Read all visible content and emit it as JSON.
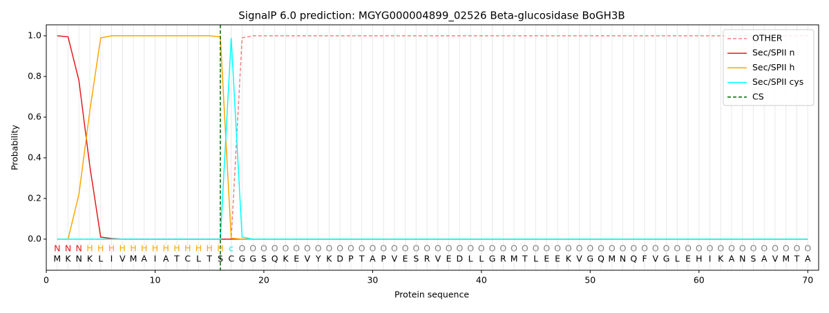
{
  "chart_data": {
    "type": "line",
    "title": "SignalP 6.0 prediction: MGYG000004899_02526 Beta-glucosidase BoGH3B",
    "xlabel": "Protein sequence",
    "ylabel": "Probability",
    "x": [
      1,
      2,
      3,
      4,
      5,
      6,
      7,
      8,
      9,
      10,
      11,
      12,
      13,
      14,
      15,
      16,
      17,
      18,
      19,
      20,
      21,
      22,
      23,
      24,
      25,
      26,
      27,
      28,
      29,
      30,
      31,
      32,
      33,
      34,
      35,
      36,
      37,
      38,
      39,
      40,
      41,
      42,
      43,
      44,
      45,
      46,
      47,
      48,
      49,
      50,
      51,
      52,
      53,
      54,
      55,
      56,
      57,
      58,
      59,
      60,
      61,
      62,
      63,
      64,
      65,
      66,
      67,
      68,
      69,
      70
    ],
    "residues": [
      "M",
      "K",
      "N",
      "K",
      "L",
      "I",
      "V",
      "M",
      "A",
      "I",
      "A",
      "T",
      "C",
      "L",
      "T",
      "S",
      "C",
      "G",
      "G",
      "S",
      "Q",
      "K",
      "E",
      "V",
      "Y",
      "K",
      "D",
      "P",
      "T",
      "A",
      "P",
      "V",
      "E",
      "S",
      "R",
      "V",
      "E",
      "D",
      "L",
      "L",
      "G",
      "R",
      "M",
      "T",
      "L",
      "E",
      "E",
      "K",
      "V",
      "G",
      "Q",
      "M",
      "N",
      "Q",
      "F",
      "V",
      "G",
      "L",
      "E",
      "H",
      "I",
      "K",
      "A",
      "N",
      "S",
      "A",
      "V",
      "M",
      "T",
      "A"
    ],
    "labels": [
      "N",
      "N",
      "N",
      "H",
      "H",
      "H",
      "H",
      "H",
      "H",
      "H",
      "H",
      "H",
      "H",
      "H",
      "H",
      "H",
      "c",
      "O",
      "O",
      "O",
      "O",
      "O",
      "O",
      "O",
      "O",
      "O",
      "O",
      "O",
      "O",
      "O",
      "O",
      "O",
      "O",
      "O",
      "O",
      "O",
      "O",
      "O",
      "O",
      "O",
      "O",
      "O",
      "O",
      "O",
      "O",
      "O",
      "O",
      "O",
      "O",
      "O",
      "O",
      "O",
      "O",
      "O",
      "O",
      "O",
      "O",
      "O",
      "O",
      "O",
      "O",
      "O",
      "O",
      "O",
      "O",
      "O",
      "O",
      "O",
      "O",
      "O"
    ],
    "label_colors": {
      "N": "#e41a1c",
      "H": "#ffa500",
      "c": "#00e5ee",
      "O": "#808080"
    },
    "series": [
      {
        "name": "OTHER",
        "color": "#f08080",
        "dashed": true,
        "values": [
          0,
          0,
          0,
          0,
          0,
          0,
          0,
          0,
          0,
          0,
          0,
          0,
          0,
          0,
          0,
          0,
          0,
          0.99,
          1,
          1,
          1,
          1,
          1,
          1,
          1,
          1,
          1,
          1,
          1,
          1,
          1,
          1,
          1,
          1,
          1,
          1,
          1,
          1,
          1,
          1,
          1,
          1,
          1,
          1,
          1,
          1,
          1,
          1,
          1,
          1,
          1,
          1,
          1,
          1,
          1,
          1,
          1,
          1,
          1,
          1,
          1,
          1,
          1,
          1,
          1,
          1,
          1,
          1,
          1,
          1
        ]
      },
      {
        "name": "Sec/SPII n",
        "color": "#e41a1c",
        "dashed": false,
        "values": [
          1.0,
          0.995,
          0.78,
          0.36,
          0.01,
          0.003,
          0,
          0,
          0,
          0,
          0,
          0,
          0,
          0,
          0,
          0,
          0,
          0,
          0,
          0,
          0,
          0,
          0,
          0,
          0,
          0,
          0,
          0,
          0,
          0,
          0,
          0,
          0,
          0,
          0,
          0,
          0,
          0,
          0,
          0,
          0,
          0,
          0,
          0,
          0,
          0,
          0,
          0,
          0,
          0,
          0,
          0,
          0,
          0,
          0,
          0,
          0,
          0,
          0,
          0,
          0,
          0,
          0,
          0,
          0,
          0,
          0,
          0,
          0,
          0
        ]
      },
      {
        "name": "Sec/SPII h",
        "color": "#ffa500",
        "dashed": false,
        "values": [
          0,
          0,
          0.22,
          0.63,
          0.99,
          1.0,
          1.0,
          1.0,
          1.0,
          1.0,
          1.0,
          1.0,
          1.0,
          1.0,
          1.0,
          0.995,
          0.005,
          0,
          0,
          0,
          0,
          0,
          0,
          0,
          0,
          0,
          0,
          0,
          0,
          0,
          0,
          0,
          0,
          0,
          0,
          0,
          0,
          0,
          0,
          0,
          0,
          0,
          0,
          0,
          0,
          0,
          0,
          0,
          0,
          0,
          0,
          0,
          0,
          0,
          0,
          0,
          0,
          0,
          0,
          0,
          0,
          0,
          0,
          0,
          0,
          0,
          0,
          0,
          0,
          0
        ]
      },
      {
        "name": "Sec/SPII cys",
        "color": "#00ffff",
        "dashed": false,
        "values": [
          0,
          0,
          0,
          0,
          0,
          0,
          0,
          0,
          0,
          0,
          0,
          0,
          0,
          0,
          0,
          0,
          0.99,
          0.01,
          0,
          0,
          0,
          0,
          0,
          0,
          0,
          0,
          0,
          0,
          0,
          0,
          0,
          0,
          0,
          0,
          0,
          0,
          0,
          0,
          0,
          0,
          0,
          0,
          0,
          0,
          0,
          0,
          0,
          0,
          0,
          0,
          0,
          0,
          0,
          0,
          0,
          0,
          0,
          0,
          0,
          0,
          0,
          0,
          0,
          0,
          0,
          0,
          0,
          0,
          0,
          0
        ]
      }
    ],
    "cs": {
      "name": "CS",
      "x": 16,
      "color": "#006400"
    },
    "xlim": [
      0,
      71
    ],
    "ylim": [
      -0.153,
      1.054
    ],
    "xticks": [
      0,
      10,
      20,
      30,
      40,
      50,
      60,
      70
    ],
    "yticks": [
      {
        "value": 0,
        "label": "0.0"
      },
      {
        "value": 0.2,
        "label": "0.2"
      },
      {
        "value": 0.4,
        "label": "0.4"
      },
      {
        "value": 0.6,
        "label": "0.6"
      },
      {
        "value": 0.8,
        "label": "0.8"
      },
      {
        "value": 1.0,
        "label": "1.0"
      }
    ],
    "legend": "upper right"
  }
}
